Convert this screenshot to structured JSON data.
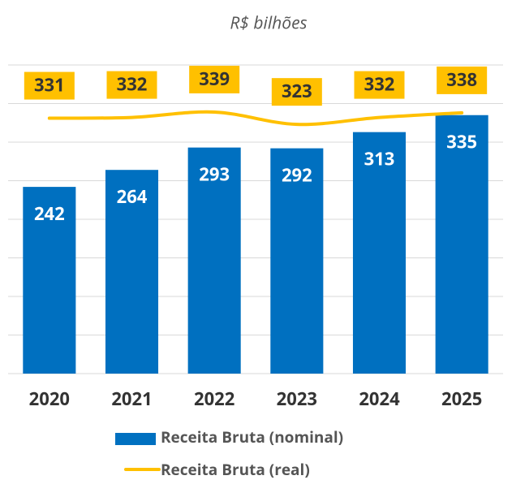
{
  "chart_data": {
    "type": "bar_line",
    "subtitle": "R$ bilhões",
    "categories": [
      "2020",
      "2021",
      "2022",
      "2023",
      "2024",
      "2025"
    ],
    "series": [
      {
        "name": "Receita Bruta (nominal)",
        "type": "bar",
        "color": "#0070c0",
        "values": [
          242,
          264,
          293,
          292,
          313,
          335
        ]
      },
      {
        "name": "Receita Bruta (real)",
        "type": "line",
        "color": "#ffc000",
        "values": [
          331,
          332,
          339,
          323,
          332,
          338
        ]
      }
    ],
    "ylim": [
      0,
      400
    ],
    "yticks": [
      0,
      50,
      100,
      150,
      200,
      250,
      300,
      350,
      400
    ],
    "grid": true
  }
}
